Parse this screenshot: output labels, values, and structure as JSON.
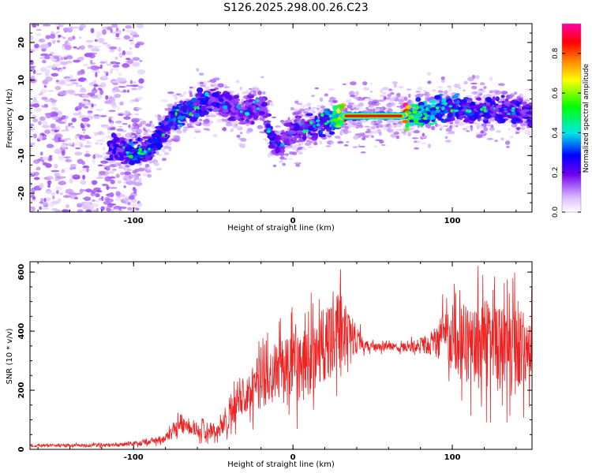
{
  "title": "S126.2025.298.00.26.C23",
  "chart_data": [
    {
      "type": "heatmap",
      "xlabel": "Height of straight line (km)",
      "ylabel": "Frequency (Hz)",
      "xlim": [
        -165,
        150
      ],
      "ylim": [
        -25,
        25
      ],
      "xticks": [
        -100,
        0,
        100
      ],
      "yticks": [
        -20,
        -10,
        0,
        10,
        20
      ],
      "colorbar": {
        "label": "Normalized spectral amplitude",
        "range": [
          0,
          0.95
        ],
        "ticks": [
          "0.0",
          "0.2",
          "0.4",
          "0.6",
          "0.8"
        ],
        "colors": [
          "#ffffff",
          "#c9a6ff",
          "#7000ee",
          "#0000ff",
          "#00e8e8",
          "#00ff00",
          "#ffff00",
          "#ff8800",
          "#ff0000",
          "#ff00aa"
        ]
      },
      "ridge": [
        {
          "x": -110,
          "y": -8,
          "a": 0.25
        },
        {
          "x": -100,
          "y": -10,
          "a": 0.35
        },
        {
          "x": -90,
          "y": -8,
          "a": 0.3
        },
        {
          "x": -80,
          "y": -3,
          "a": 0.3
        },
        {
          "x": -70,
          "y": 1,
          "a": 0.35
        },
        {
          "x": -60,
          "y": 3,
          "a": 0.3
        },
        {
          "x": -50,
          "y": 5,
          "a": 0.25
        },
        {
          "x": -40,
          "y": 3,
          "a": 0.2
        },
        {
          "x": -30,
          "y": 1,
          "a": 0.2
        },
        {
          "x": -20,
          "y": 4,
          "a": 0.2
        },
        {
          "x": -15,
          "y": -3,
          "a": 0.25
        },
        {
          "x": -10,
          "y": -8,
          "a": 0.2
        },
        {
          "x": 0,
          "y": -4,
          "a": 0.2
        },
        {
          "x": 10,
          "y": -2,
          "a": 0.25
        },
        {
          "x": 20,
          "y": -1,
          "a": 0.3
        },
        {
          "x": 28,
          "y": 0,
          "a": 0.55
        },
        {
          "x": 32,
          "y": 0.5,
          "a": 0.95
        },
        {
          "x": 70,
          "y": 0.5,
          "a": 0.95
        },
        {
          "x": 75,
          "y": 1,
          "a": 0.5
        },
        {
          "x": 85,
          "y": 1,
          "a": 0.45
        },
        {
          "x": 95,
          "y": 3,
          "a": 0.35
        },
        {
          "x": 110,
          "y": 2,
          "a": 0.3
        },
        {
          "x": 130,
          "y": 2,
          "a": 0.25
        },
        {
          "x": 148,
          "y": 1,
          "a": 0.25
        }
      ]
    },
    {
      "type": "line",
      "xlabel": "Height of straight line (km)",
      "ylabel": "SNR (10 * v/v)",
      "xlim": [
        -165,
        150
      ],
      "ylim": [
        0,
        635
      ],
      "xticks": [
        -100,
        0,
        100
      ],
      "yticks": [
        0,
        200,
        400,
        600
      ],
      "color": "#ee2222",
      "envelope": [
        {
          "x": -165,
          "lo": 5,
          "hi": 20
        },
        {
          "x": -110,
          "lo": 5,
          "hi": 25
        },
        {
          "x": -95,
          "lo": 5,
          "hi": 40
        },
        {
          "x": -80,
          "lo": 10,
          "hi": 60
        },
        {
          "x": -70,
          "lo": 30,
          "hi": 150
        },
        {
          "x": -55,
          "lo": 15,
          "hi": 100
        },
        {
          "x": -45,
          "lo": 15,
          "hi": 120
        },
        {
          "x": -35,
          "lo": 50,
          "hi": 260
        },
        {
          "x": -25,
          "lo": 60,
          "hi": 380
        },
        {
          "x": -10,
          "lo": 60,
          "hi": 450
        },
        {
          "x": 0,
          "lo": 40,
          "hi": 500
        },
        {
          "x": 10,
          "lo": 80,
          "hi": 520
        },
        {
          "x": 20,
          "lo": 120,
          "hi": 600
        },
        {
          "x": 30,
          "lo": 200,
          "hi": 630
        },
        {
          "x": 40,
          "lo": 280,
          "hi": 470
        },
        {
          "x": 45,
          "lo": 320,
          "hi": 380
        },
        {
          "x": 70,
          "lo": 320,
          "hi": 370
        },
        {
          "x": 85,
          "lo": 290,
          "hi": 420
        },
        {
          "x": 95,
          "lo": 220,
          "hi": 540
        },
        {
          "x": 105,
          "lo": 120,
          "hi": 620
        },
        {
          "x": 125,
          "lo": 80,
          "hi": 630
        },
        {
          "x": 150,
          "lo": 100,
          "hi": 580
        }
      ]
    }
  ]
}
